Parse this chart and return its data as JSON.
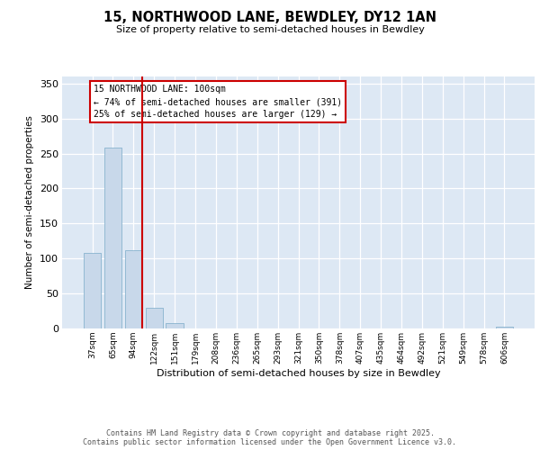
{
  "title1": "15, NORTHWOOD LANE, BEWDLEY, DY12 1AN",
  "title2": "Size of property relative to semi-detached houses in Bewdley",
  "xlabel": "Distribution of semi-detached houses by size in Bewdley",
  "ylabel": "Number of semi-detached properties",
  "categories": [
    "37sqm",
    "65sqm",
    "94sqm",
    "122sqm",
    "151sqm",
    "179sqm",
    "208sqm",
    "236sqm",
    "265sqm",
    "293sqm",
    "321sqm",
    "350sqm",
    "378sqm",
    "407sqm",
    "435sqm",
    "464sqm",
    "492sqm",
    "521sqm",
    "549sqm",
    "578sqm",
    "606sqm"
  ],
  "values": [
    108,
    258,
    112,
    30,
    8,
    0,
    0,
    0,
    0,
    0,
    0,
    0,
    0,
    0,
    0,
    0,
    0,
    0,
    0,
    0,
    2
  ],
  "bar_color": "#c8d8ea",
  "bar_edge_color": "#7aaac8",
  "vline_color": "#cc0000",
  "vline_index": 2.42,
  "annotation_line1": "15 NORTHWOOD LANE: 100sqm",
  "annotation_line2": "← 74% of semi-detached houses are smaller (391)",
  "annotation_line3": "25% of semi-detached houses are larger (129) →",
  "ann_box_edgecolor": "#cc0000",
  "ylim_max": 360,
  "yticks": [
    0,
    50,
    100,
    150,
    200,
    250,
    300,
    350
  ],
  "bg_color": "#dde8f4",
  "grid_color": "#ffffff",
  "footer1": "Contains HM Land Registry data © Crown copyright and database right 2025.",
  "footer2": "Contains public sector information licensed under the Open Government Licence v3.0."
}
